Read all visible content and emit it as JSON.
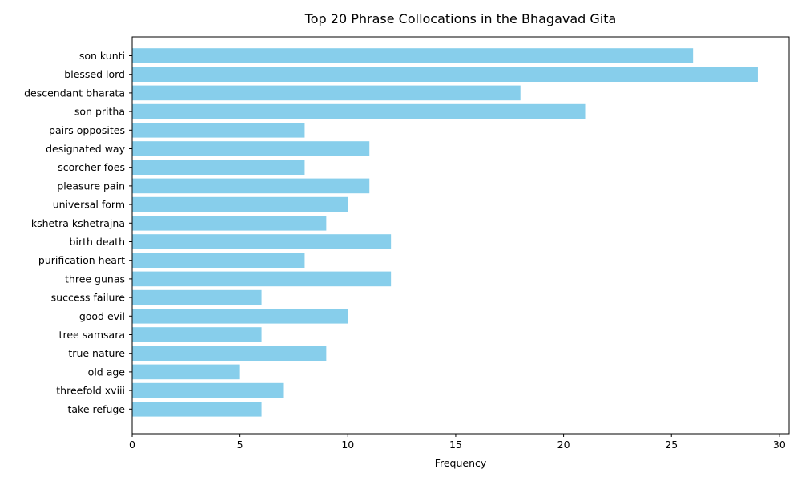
{
  "chart_data": {
    "type": "bar",
    "orientation": "horizontal",
    "title": "Top 20 Phrase Collocations in the Bhagavad Gita",
    "xlabel": "Frequency",
    "ylabel": "",
    "xlim": [
      0,
      30.45
    ],
    "xticks": [
      0,
      5,
      10,
      15,
      20,
      25,
      30
    ],
    "grid": false,
    "bar_color": "#87ceeb",
    "categories": [
      "son kunti",
      "blessed lord",
      "descendant bharata",
      "son pritha",
      "pairs opposites",
      "designated way",
      "scorcher foes",
      "pleasure pain",
      "universal form",
      "kshetra kshetrajna",
      "birth death",
      "purification heart",
      "three gunas",
      "success failure",
      "good evil",
      "tree samsara",
      "true nature",
      "old age",
      "threefold xviii",
      "take refuge"
    ],
    "values": [
      26,
      29,
      18,
      21,
      8,
      11,
      8,
      11,
      10,
      9,
      12,
      8,
      12,
      6,
      10,
      6,
      9,
      5,
      7,
      6
    ]
  }
}
